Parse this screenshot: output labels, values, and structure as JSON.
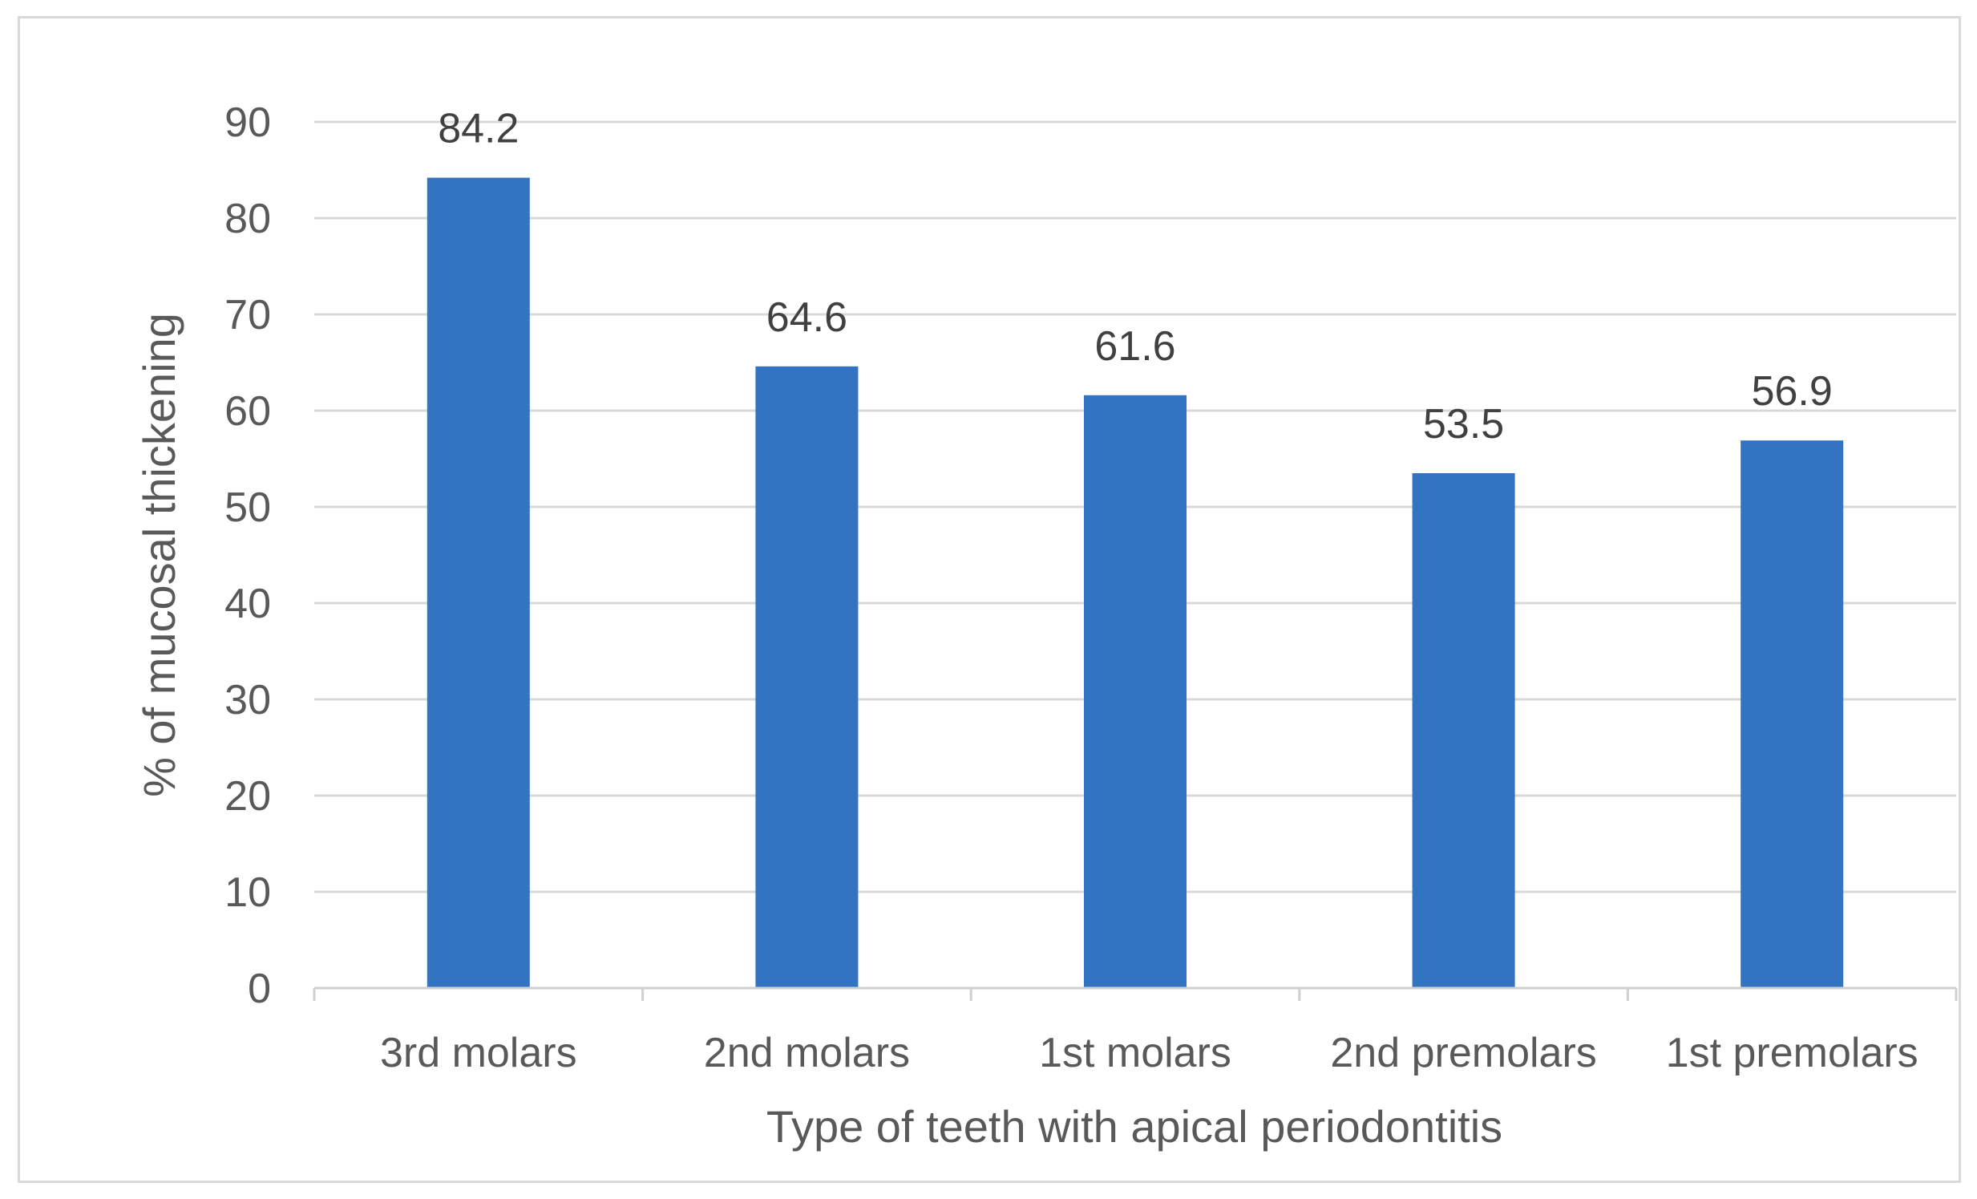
{
  "chart_data": {
    "type": "bar",
    "title": "",
    "categories": [
      "3rd molars",
      "2nd molars",
      "1st molars",
      "2nd premolars",
      "1st premolars"
    ],
    "values": [
      84.2,
      64.6,
      61.6,
      53.5,
      56.9
    ],
    "value_labels": [
      "84.2",
      "64.6",
      "61.6",
      "53.5",
      "56.9"
    ],
    "xlabel": "Type of teeth with apical periodontitis",
    "ylabel": "% of mucosal thickening",
    "ylim": [
      0,
      90
    ],
    "yticks": [
      0,
      10,
      20,
      30,
      40,
      50,
      60,
      70,
      80,
      90
    ],
    "grid": true,
    "legend": "none",
    "colors": {
      "bar": "#3273c2",
      "grid": "#d9d9d9",
      "axis": "#d0d0d0"
    }
  }
}
